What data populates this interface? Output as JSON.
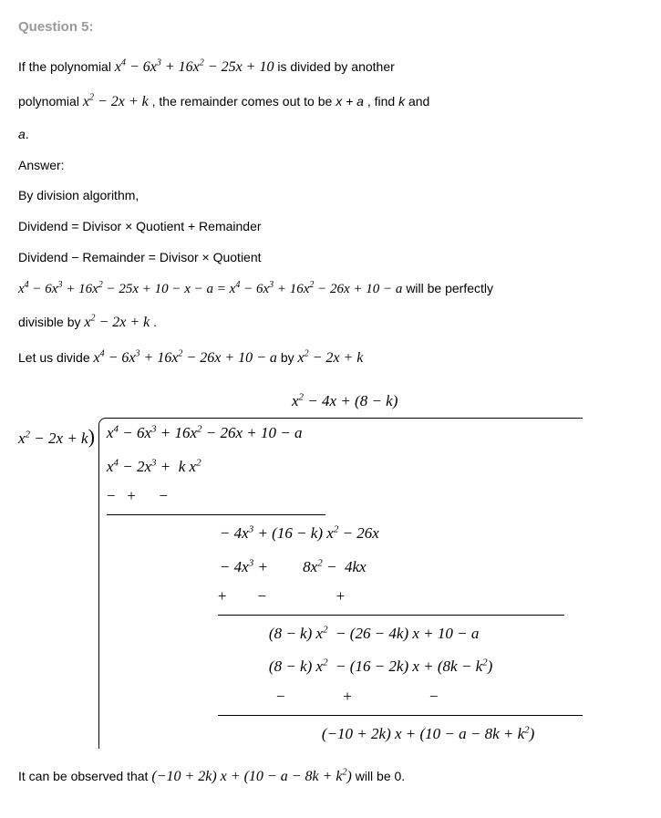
{
  "title": "Question 5:",
  "q_line1_a": "If the polynomial ",
  "q_poly1": "x<sup>4</sup> − 6x<sup>3</sup> + 16x<sup>2</sup> − 25x + 10",
  "q_line1_b": " is divided by another",
  "q_line2_a": "polynomial ",
  "q_poly2": "x<sup>2</sup> − 2x + k",
  "q_line2_b": ", the remainder comes out to be ",
  "q_rem": "x + a",
  "q_line2_c": ", find ",
  "q_k": "k",
  "q_and": " and",
  "q_a": "a",
  "q_dot": ".",
  "ans": "Answer:",
  "l1": "By division algorithm,",
  "l2": "Dividend = Divisor × Quotient + Remainder",
  "l3": "Dividend − Remainder = Divisor × Quotient",
  "eq1": "x<sup>4</sup> − 6x<sup>3</sup> + 16x<sup>2</sup> − 25x + 10 − x − a = x<sup>4</sup> − 6x<sup>3</sup> + 16x<sup>2</sup> − 26x + 10 − a",
  "eq1_tail": " will be perfectly",
  "l4a": "divisible by ",
  "divpoly": "x<sup>2</sup> − 2x + k",
  "l5a": "Let us divide ",
  "eq2": "x<sup>4</sup> − 6x<sup>3</sup> + 16x<sup>2</sup> − 26x + 10 − a",
  "l5b": " by ",
  "quotient": "x<sup>2</sup> − 4x + (8 − k)",
  "divisor": "x<sup>2</sup> − 2x + k",
  "dividend": "x<sup>4</sup> − 6x<sup>3</sup> + 16x<sup>2</sup> − 26x + 10 − a",
  "s1": "x<sup>4</sup> − 2x<sup>3</sup> + &nbsp;k x<sup>2</sup>",
  "sg1": "−&nbsp;&nbsp; +&nbsp;&nbsp;&nbsp;&nbsp;&nbsp; −",
  "s2": "− 4x<sup>3</sup> + (16 − k) x<sup>2</sup> − 26x",
  "s3": "− 4x<sup>3</sup> + &nbsp;&nbsp;&nbsp;&nbsp;&nbsp;&nbsp;&nbsp;&nbsp;8x<sup>2</sup> − &nbsp;4kx",
  "sg2": "+&nbsp;&nbsp;&nbsp;&nbsp;&nbsp;&nbsp;&nbsp; −&nbsp;&nbsp;&nbsp;&nbsp;&nbsp;&nbsp;&nbsp;&nbsp;&nbsp;&nbsp;&nbsp;&nbsp;&nbsp;&nbsp;&nbsp;&nbsp;&nbsp; +",
  "s4": "(8 − k) x<sup>2</sup> &nbsp;− (26 − 4k) x + 10 − a",
  "s5": "(8 − k) x<sup>2</sup> &nbsp;− (16 − 2k) x + (8k − k<sup>2</sup>)",
  "sg3": "−&nbsp;&nbsp;&nbsp;&nbsp;&nbsp;&nbsp;&nbsp;&nbsp;&nbsp;&nbsp;&nbsp;&nbsp;&nbsp;&nbsp; +&nbsp;&nbsp;&nbsp;&nbsp;&nbsp;&nbsp;&nbsp;&nbsp;&nbsp;&nbsp;&nbsp;&nbsp;&nbsp;&nbsp;&nbsp;&nbsp;&nbsp;&nbsp;&nbsp; −",
  "s6": "(−10 + 2k) x + (10 − a − 8k + k<sup>2</sup>)",
  "obs_a": "It can be observed that ",
  "obs_expr": "(−10 + 2k) x + (10 − a − 8k + k<sup>2</sup>)",
  "obs_b": " will be 0."
}
